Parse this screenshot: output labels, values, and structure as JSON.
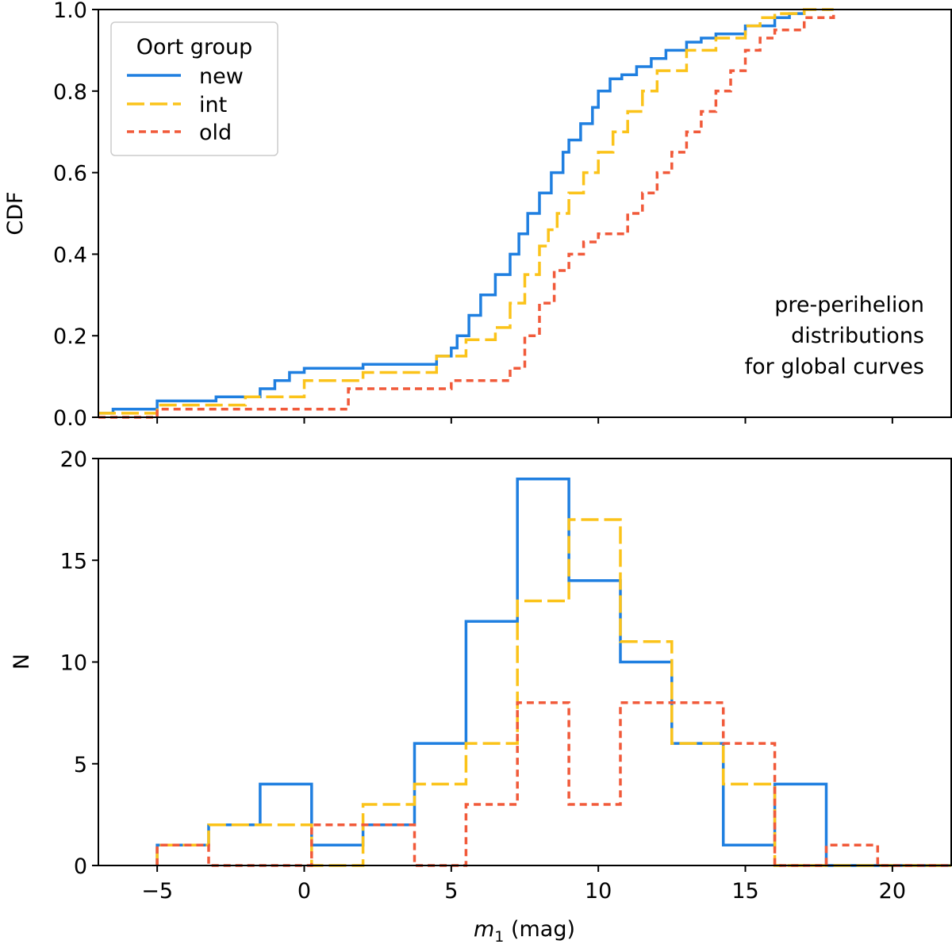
{
  "chart_data": [
    {
      "type": "step-cdf",
      "panel": "top",
      "ylabel": "CDF",
      "xlim": [
        -7,
        22
      ],
      "ylim": [
        0,
        1.0
      ],
      "yticks": [
        0.0,
        0.2,
        0.4,
        0.6,
        0.8,
        1.0
      ],
      "ytick_labels": [
        "0.0",
        "0.2",
        "0.4",
        "0.6",
        "0.8",
        "1.0"
      ],
      "xticks": [
        -5,
        0,
        5,
        10,
        15,
        20
      ],
      "annotation": [
        "pre-perihelion",
        "distributions",
        "for global curves"
      ],
      "legend": {
        "title": "Oort group",
        "placement": "top-left"
      },
      "series": [
        {
          "name": "new",
          "color": "#1f7fe0",
          "dash": "solid",
          "x": [
            -7.0,
            -6.5,
            -5.0,
            -3.0,
            -1.5,
            -1.0,
            -0.5,
            0.0,
            2.0,
            4.5,
            5.0,
            5.2,
            5.6,
            6.0,
            6.5,
            7.0,
            7.3,
            7.6,
            8.0,
            8.4,
            8.8,
            9.0,
            9.4,
            9.8,
            10.0,
            10.4,
            10.8,
            11.3,
            11.8,
            12.3,
            13.0,
            13.5,
            14.0,
            15.0,
            16.0,
            16.5,
            17.0
          ],
          "y": [
            0.01,
            0.02,
            0.04,
            0.05,
            0.07,
            0.09,
            0.11,
            0.12,
            0.13,
            0.15,
            0.17,
            0.2,
            0.25,
            0.3,
            0.35,
            0.4,
            0.45,
            0.5,
            0.55,
            0.6,
            0.65,
            0.68,
            0.72,
            0.76,
            0.8,
            0.83,
            0.84,
            0.86,
            0.88,
            0.9,
            0.92,
            0.93,
            0.94,
            0.96,
            0.98,
            0.99,
            1.0
          ]
        },
        {
          "name": "int",
          "color": "#fbc31a",
          "dash": "longdash",
          "x": [
            -7.0,
            -5.0,
            -2.0,
            0.0,
            2.0,
            4.5,
            5.5,
            6.5,
            7.0,
            7.5,
            8.0,
            8.3,
            8.6,
            9.0,
            9.5,
            10.0,
            10.5,
            11.0,
            11.5,
            12.0,
            13.0,
            14.0,
            15.0,
            15.5,
            16.0,
            17.0,
            18.0
          ],
          "y": [
            0.01,
            0.03,
            0.05,
            0.09,
            0.11,
            0.15,
            0.19,
            0.22,
            0.28,
            0.35,
            0.42,
            0.46,
            0.5,
            0.55,
            0.6,
            0.65,
            0.7,
            0.75,
            0.8,
            0.85,
            0.9,
            0.93,
            0.96,
            0.98,
            0.99,
            1.0,
            1.0
          ]
        },
        {
          "name": "old",
          "color": "#f15a3a",
          "dash": "shortdash",
          "x": [
            -7.0,
            -5.0,
            1.0,
            1.5,
            5.0,
            7.0,
            7.5,
            8.0,
            8.5,
            9.0,
            9.5,
            10.0,
            11.0,
            11.5,
            12.0,
            12.5,
            13.0,
            13.5,
            14.0,
            14.5,
            15.0,
            15.5,
            16.0,
            17.0,
            18.0
          ],
          "y": [
            0.0,
            0.02,
            0.02,
            0.07,
            0.09,
            0.12,
            0.2,
            0.28,
            0.36,
            0.4,
            0.43,
            0.45,
            0.5,
            0.55,
            0.6,
            0.65,
            0.7,
            0.75,
            0.8,
            0.85,
            0.9,
            0.93,
            0.95,
            0.98,
            1.0
          ]
        }
      ]
    },
    {
      "type": "step-histogram",
      "panel": "bottom",
      "xlabel": "m1 (mag)",
      "ylabel": "N",
      "xlim": [
        -7,
        22
      ],
      "ylim": [
        0,
        20
      ],
      "yticks": [
        0,
        5,
        10,
        15,
        20
      ],
      "xticks": [
        -5,
        0,
        5,
        10,
        15,
        20
      ],
      "bin_edges": [
        -5.0,
        -3.25,
        -1.5,
        0.25,
        2.0,
        3.75,
        5.5,
        7.25,
        9.0,
        10.75,
        12.5,
        14.25,
        16.0,
        17.75,
        19.5,
        22.0
      ],
      "series": [
        {
          "name": "new",
          "color": "#1f7fe0",
          "dash": "solid",
          "counts": [
            1,
            2,
            4,
            1,
            2,
            6,
            12,
            19,
            14,
            10,
            6,
            1,
            4,
            0,
            0
          ]
        },
        {
          "name": "int",
          "color": "#fbc31a",
          "dash": "longdash",
          "counts": [
            1,
            2,
            2,
            0,
            3,
            4,
            6,
            13,
            17,
            11,
            6,
            4,
            0,
            0,
            0
          ]
        },
        {
          "name": "old",
          "color": "#f15a3a",
          "dash": "shortdash",
          "counts": [
            1,
            0,
            0,
            2,
            2,
            0,
            3,
            8,
            3,
            8,
            8,
            6,
            0,
            1,
            0
          ]
        }
      ]
    }
  ],
  "xaxis": {
    "label_var": "m",
    "label_sub": "1",
    "label_unit": " (mag)",
    "tick_labels": [
      "−5",
      "0",
      "5",
      "10",
      "15",
      "20"
    ]
  },
  "top_ylabel": "CDF",
  "bottom_ylabel": "N",
  "bottom_ytick_labels": [
    "0",
    "5",
    "10",
    "15",
    "20"
  ]
}
